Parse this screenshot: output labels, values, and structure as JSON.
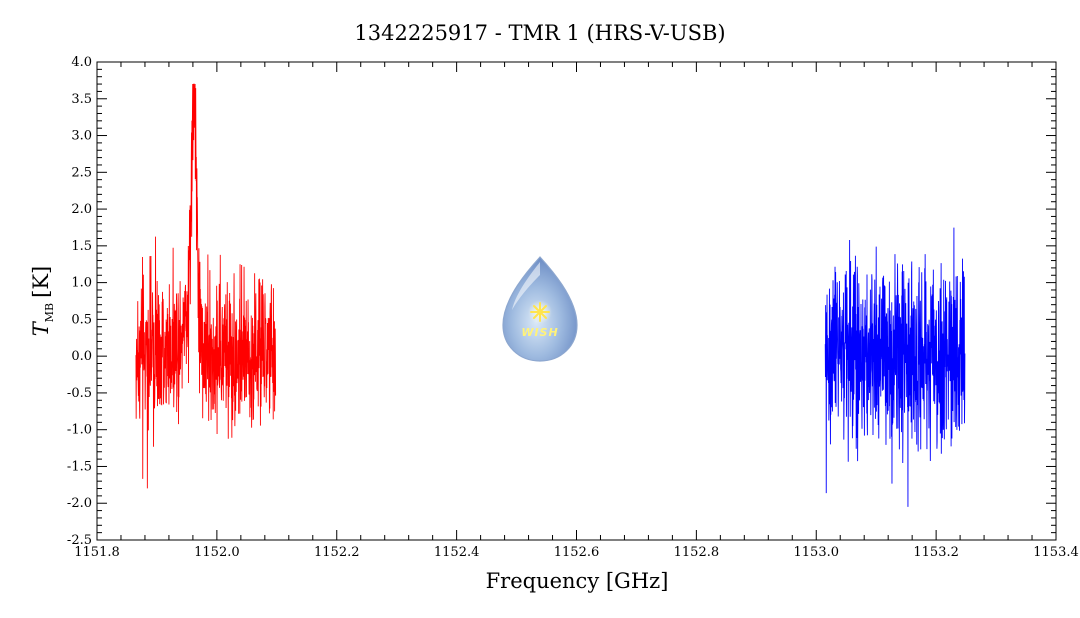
{
  "chart_data": {
    "type": "line",
    "title": "1342225917 - TMR 1 (HRS-V-USB)",
    "xlabel": "Frequency [GHz]",
    "ylabel": {
      "symbol": "T",
      "subscript": "MB",
      "unit": "[K]"
    },
    "xlim": [
      1151.8,
      1153.4
    ],
    "ylim": [
      -2.5,
      4.0
    ],
    "x_ticks": [
      "1151.8",
      "1152.0",
      "1152.2",
      "1152.4",
      "1152.6",
      "1152.8",
      "1153.0",
      "1153.2",
      "1153.4"
    ],
    "y_ticks": [
      "-2.5",
      "-2.0",
      "-1.5",
      "-1.0",
      "-0.5",
      "0.0",
      "0.5",
      "1.0",
      "1.5",
      "2.0",
      "2.5",
      "3.0",
      "3.5",
      "4.0"
    ],
    "grid": false,
    "logo_text": "WISH",
    "series": [
      {
        "color": "#ff0000",
        "x_range": [
          1151.865,
          1152.098
        ],
        "noise_envelope": [
          -1.8,
          1.8
        ],
        "peak": {
          "x": 1151.962,
          "y": 3.7
        }
      },
      {
        "color": "#0000ff",
        "x_range": [
          1153.015,
          1153.248
        ],
        "noise_envelope": [
          -2.05,
          2.45
        ],
        "peak": null
      }
    ]
  }
}
